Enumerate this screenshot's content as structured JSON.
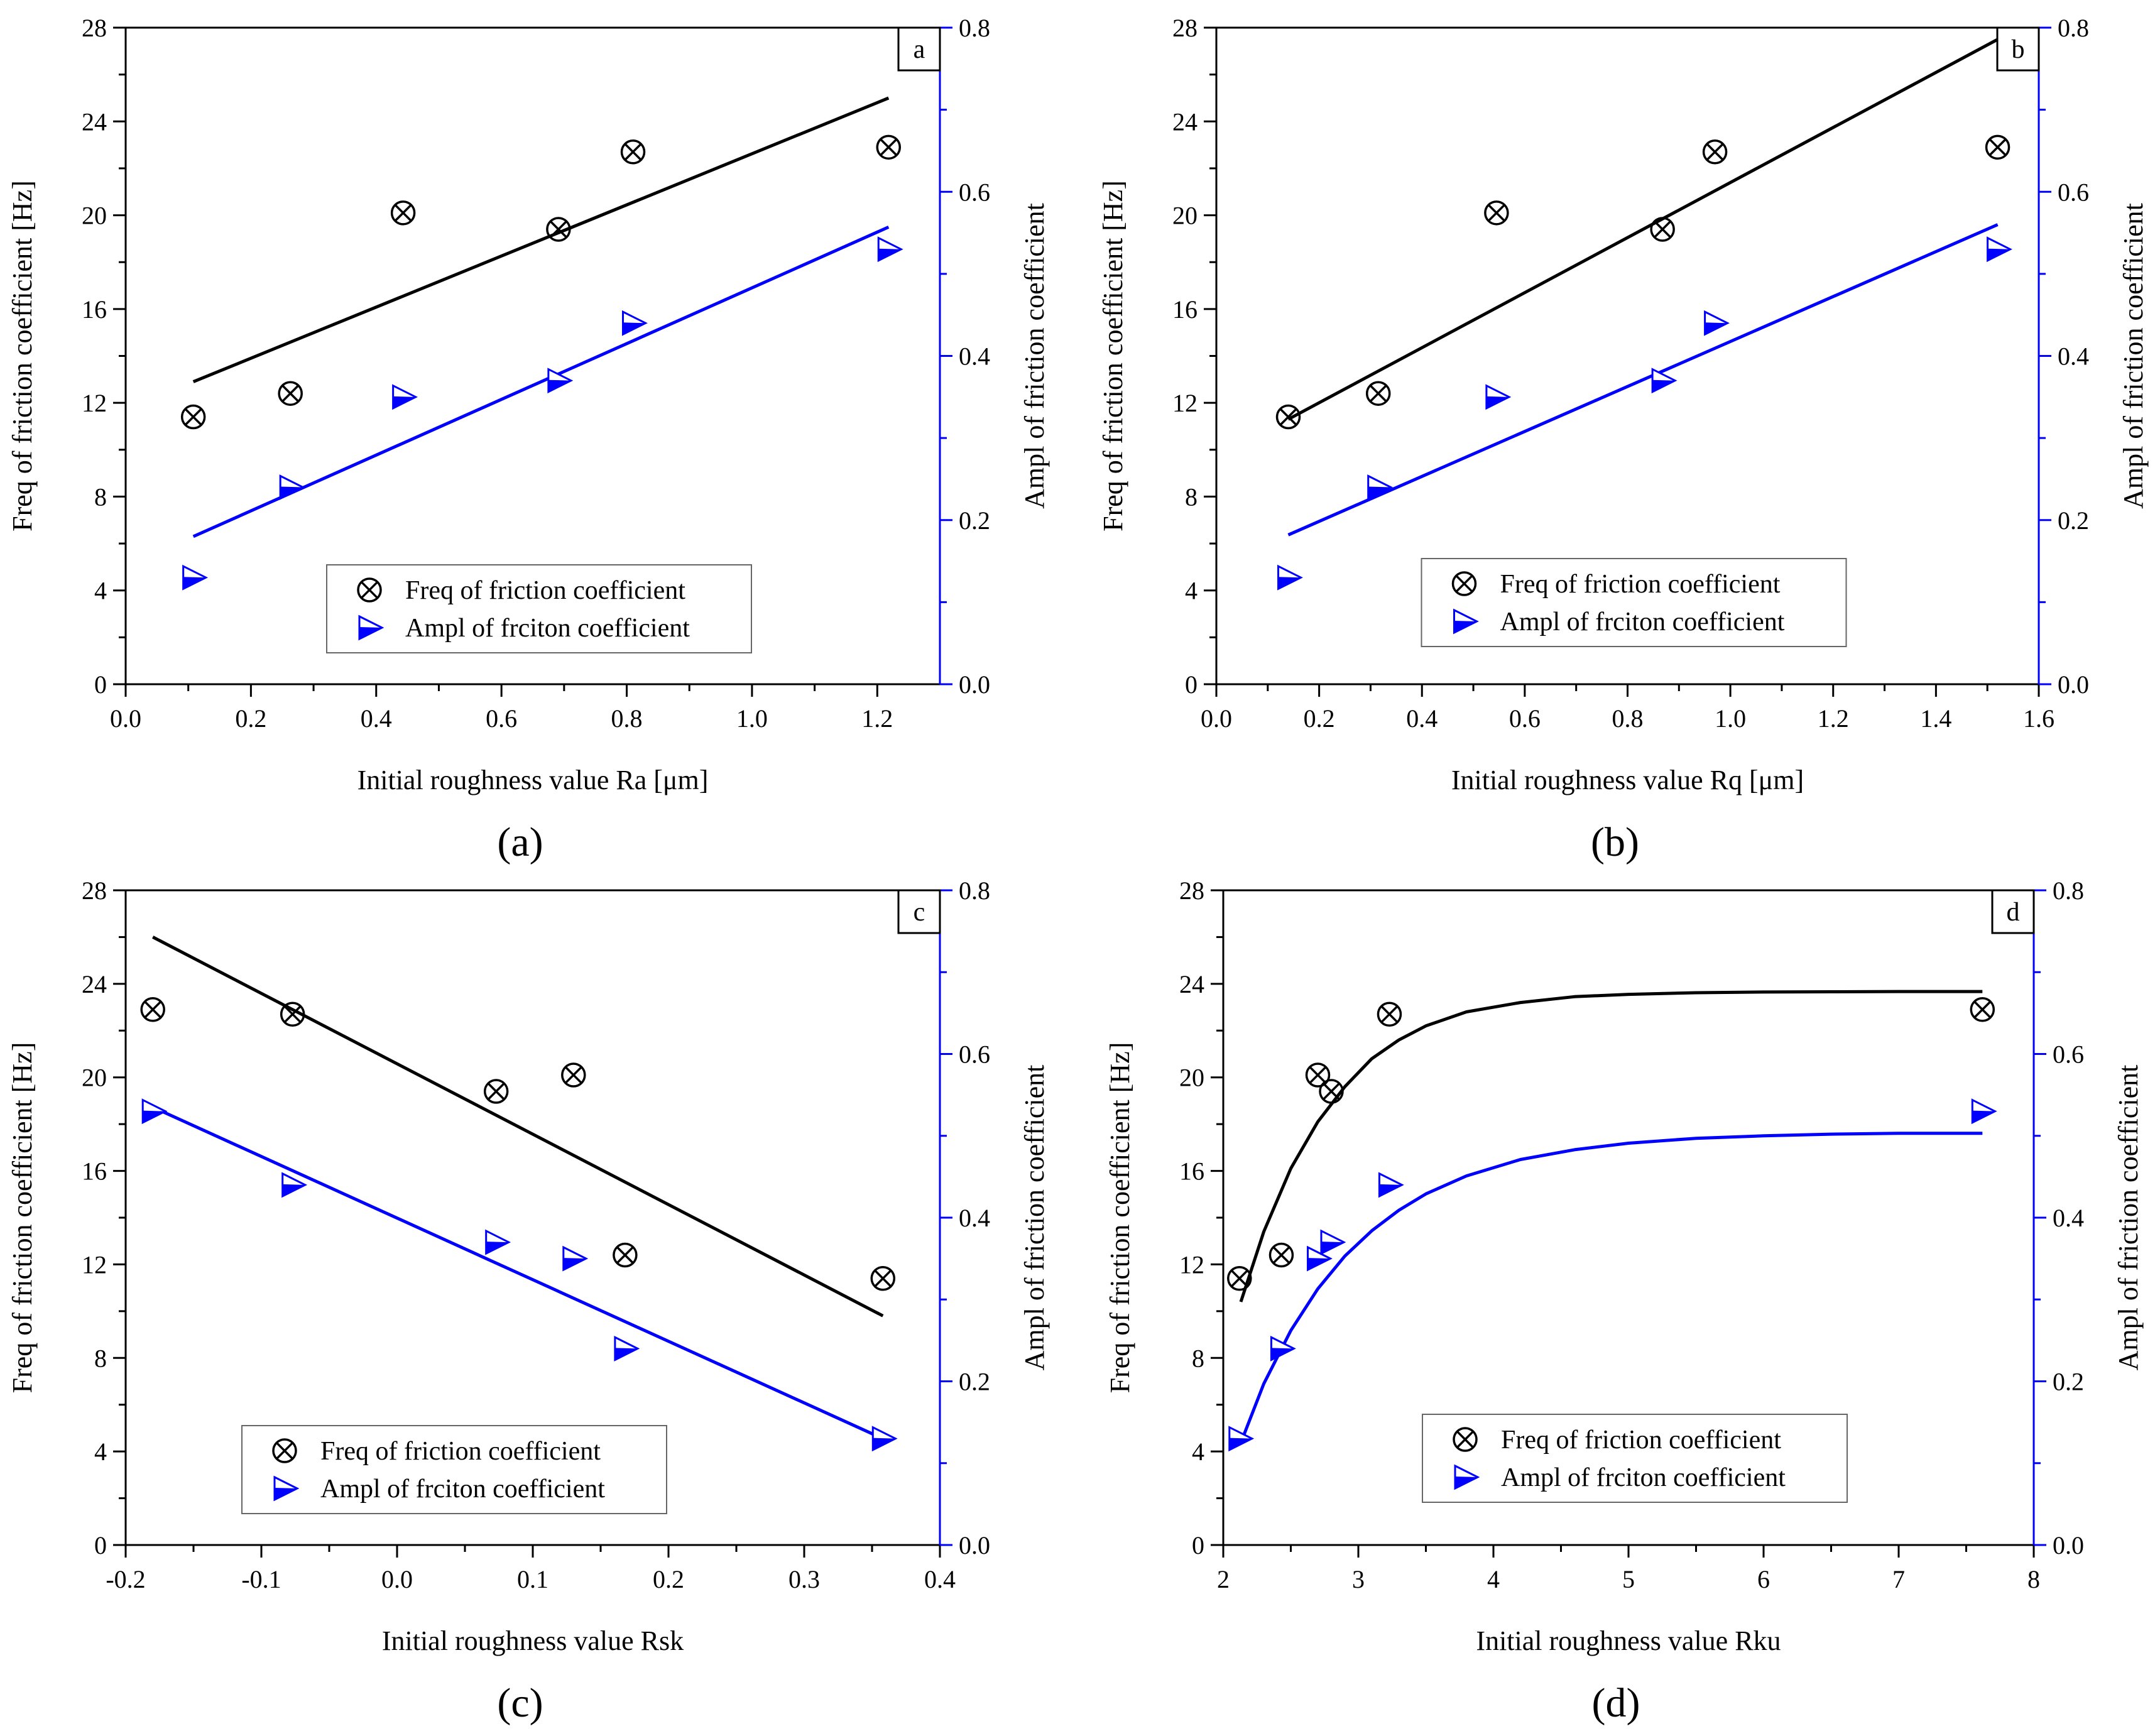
{
  "figure": {
    "panels": [
      "a",
      "b",
      "c",
      "d"
    ]
  },
  "colors": {
    "axis": "#000000",
    "secondary_axis": "#0000ff",
    "freq": "#000000",
    "ampl": "#0000ff"
  },
  "chart_data": [
    {
      "id": "a",
      "type": "scatter",
      "caption": "(a)",
      "panel_label": "a",
      "xlabel": "Initial roughness value Ra [μm]",
      "ylabel": "Freq of friction coefficient [Hz]",
      "y2label": "Ampl of friction coefficient",
      "xlim": [
        0,
        1.3
      ],
      "ylim": [
        0,
        28
      ],
      "y2lim": [
        0,
        0.8
      ],
      "xticks": [
        "0.0",
        "0.2",
        "0.4",
        "0.6",
        "0.8",
        "1.0",
        "1.2"
      ],
      "xtick_values": [
        0,
        0.2,
        0.4,
        0.6,
        0.8,
        1.0,
        1.2
      ],
      "yticks": [
        "0",
        "4",
        "8",
        "12",
        "16",
        "20",
        "24",
        "28"
      ],
      "ytick_values": [
        0,
        4,
        8,
        12,
        16,
        20,
        24,
        28
      ],
      "y2ticks": [
        "0.0",
        "0.2",
        "0.4",
        "0.6",
        "0.8"
      ],
      "y2tick_values": [
        0,
        0.2,
        0.4,
        0.6,
        0.8
      ],
      "legend_position": "bottom-center",
      "series": [
        {
          "name": "Freq of friction coefficient",
          "axis": "left",
          "marker": "circle-x",
          "x": [
            0.108,
            0.263,
            0.443,
            0.691,
            0.81,
            1.218
          ],
          "y": [
            11.4,
            12.4,
            20.1,
            19.4,
            22.7,
            22.9
          ]
        },
        {
          "name": "Ampl of frciton coefficient",
          "axis": "right",
          "marker": "triangle-right",
          "x": [
            0.108,
            0.263,
            0.443,
            0.691,
            0.81,
            1.218
          ],
          "y": [
            0.13,
            0.24,
            0.35,
            0.37,
            0.44,
            0.53
          ]
        }
      ],
      "fits": [
        {
          "series": "Freq of friction coefficient",
          "axis": "left",
          "kind": "linear",
          "x": [
            0.108,
            1.218
          ],
          "y": [
            12.9,
            25.0
          ]
        },
        {
          "series": "Ampl of frciton coefficient",
          "axis": "right",
          "kind": "linear",
          "x": [
            0.108,
            1.218
          ],
          "y": [
            0.18,
            0.557
          ]
        }
      ]
    },
    {
      "id": "b",
      "type": "scatter",
      "caption": "(b)",
      "panel_label": "b",
      "xlabel": "Initial roughness value Rq [μm]",
      "ylabel": "Freq of friction coefficient [Hz]",
      "y2label": "Ampl of friction coefficient",
      "xlim": [
        0,
        1.6
      ],
      "ylim": [
        0,
        28
      ],
      "y2lim": [
        0,
        0.8
      ],
      "xticks": [
        "0.0",
        "0.2",
        "0.4",
        "0.6",
        "0.8",
        "1.0",
        "1.2",
        "1.4",
        "1.6"
      ],
      "xtick_values": [
        0,
        0.2,
        0.4,
        0.6,
        0.8,
        1.0,
        1.2,
        1.4,
        1.6
      ],
      "yticks": [
        "0",
        "4",
        "8",
        "12",
        "16",
        "20",
        "24",
        "28"
      ],
      "ytick_values": [
        0,
        4,
        8,
        12,
        16,
        20,
        24,
        28
      ],
      "y2ticks": [
        "0.0",
        "0.2",
        "0.4",
        "0.6",
        "0.8"
      ],
      "y2tick_values": [
        0,
        0.2,
        0.4,
        0.6,
        0.8
      ],
      "legend_position": "bottom-center",
      "series": [
        {
          "name": "Freq of friction coefficient",
          "axis": "left",
          "marker": "circle-x",
          "x": [
            0.14,
            0.315,
            0.545,
            0.868,
            0.97,
            1.52
          ],
          "y": [
            11.4,
            12.4,
            20.1,
            19.4,
            22.7,
            22.9
          ]
        },
        {
          "name": "Ampl of frciton coefficient",
          "axis": "right",
          "marker": "triangle-right",
          "x": [
            0.14,
            0.315,
            0.545,
            0.868,
            0.97,
            1.52
          ],
          "y": [
            0.13,
            0.24,
            0.35,
            0.37,
            0.44,
            0.53
          ]
        }
      ],
      "fits": [
        {
          "series": "Freq of friction coefficient",
          "axis": "left",
          "kind": "linear",
          "x": [
            0.14,
            1.52
          ],
          "y": [
            11.3,
            27.5
          ]
        },
        {
          "series": "Ampl of frciton coefficient",
          "axis": "right",
          "kind": "linear",
          "x": [
            0.14,
            1.52
          ],
          "y": [
            0.182,
            0.56
          ]
        }
      ]
    },
    {
      "id": "c",
      "type": "scatter",
      "caption": "(c)",
      "panel_label": "c",
      "xlabel": "Initial roughness value Rsk",
      "ylabel": "Freq of friction coefficient [Hz]",
      "y2label": "Ampl of friction coefficient",
      "xlim": [
        -0.2,
        0.4
      ],
      "ylim": [
        0,
        28
      ],
      "y2lim": [
        0,
        0.8
      ],
      "xticks": [
        "-0.2",
        "-0.1",
        "0.0",
        "0.1",
        "0.2",
        "0.3",
        "0.4"
      ],
      "xtick_values": [
        -0.2,
        -0.1,
        0,
        0.1,
        0.2,
        0.3,
        0.4
      ],
      "yticks": [
        "0",
        "4",
        "8",
        "12",
        "16",
        "20",
        "24",
        "28"
      ],
      "ytick_values": [
        0,
        4,
        8,
        12,
        16,
        20,
        24,
        28
      ],
      "y2ticks": [
        "0.0",
        "0.2",
        "0.4",
        "0.6",
        "0.8"
      ],
      "y2tick_values": [
        0,
        0.2,
        0.4,
        0.6,
        0.8
      ],
      "legend_position": "bottom-left",
      "series": [
        {
          "name": "Freq of friction coefficient",
          "axis": "left",
          "marker": "circle-x",
          "x": [
            -0.18,
            -0.077,
            0.073,
            0.13,
            0.168,
            0.358
          ],
          "y": [
            22.9,
            22.7,
            19.4,
            20.1,
            12.4,
            11.4
          ]
        },
        {
          "name": "Ampl of frciton coefficient",
          "axis": "right",
          "marker": "triangle-right",
          "x": [
            -0.18,
            -0.077,
            0.073,
            0.13,
            0.168,
            0.358
          ],
          "y": [
            0.53,
            0.44,
            0.37,
            0.35,
            0.24,
            0.13
          ]
        }
      ],
      "fits": [
        {
          "series": "Freq of friction coefficient",
          "axis": "left",
          "kind": "linear",
          "x": [
            -0.18,
            0.358
          ],
          "y": [
            26.0,
            9.8
          ]
        },
        {
          "series": "Ampl of frciton coefficient",
          "axis": "right",
          "kind": "linear",
          "x": [
            -0.18,
            0.358
          ],
          "y": [
            0.535,
            0.13
          ]
        }
      ]
    },
    {
      "id": "d",
      "type": "scatter",
      "caption": "(d)",
      "panel_label": "d",
      "xlabel": "Initial roughness value Rku",
      "ylabel": "Freq of friction coefficient [Hz]",
      "y2label": "Ampl of friction coefficient",
      "xlim": [
        2,
        8
      ],
      "ylim": [
        0,
        28
      ],
      "y2lim": [
        0,
        0.8
      ],
      "xticks": [
        "2",
        "3",
        "4",
        "5",
        "6",
        "7",
        "8"
      ],
      "xtick_values": [
        2,
        3,
        4,
        5,
        6,
        7,
        8
      ],
      "yticks": [
        "0",
        "4",
        "8",
        "12",
        "16",
        "20",
        "24",
        "28"
      ],
      "ytick_values": [
        0,
        4,
        8,
        12,
        16,
        20,
        24,
        28
      ],
      "y2ticks": [
        "0.0",
        "0.2",
        "0.4",
        "0.6",
        "0.8"
      ],
      "y2tick_values": [
        0,
        0.2,
        0.4,
        0.6,
        0.8
      ],
      "legend_position": "bottom-center",
      "series": [
        {
          "name": "Freq of friction coefficient",
          "axis": "left",
          "marker": "circle-x",
          "x": [
            2.12,
            2.43,
            2.7,
            2.8,
            3.23,
            7.62
          ],
          "y": [
            11.4,
            12.4,
            20.1,
            19.4,
            22.7,
            22.9
          ]
        },
        {
          "name": "Ampl of frciton coefficient",
          "axis": "right",
          "marker": "triangle-right",
          "x": [
            2.12,
            2.43,
            2.7,
            2.8,
            3.23,
            7.62
          ],
          "y": [
            0.13,
            0.24,
            0.35,
            0.37,
            0.44,
            0.53
          ]
        }
      ],
      "fits": [
        {
          "series": "Freq of friction coefficient",
          "axis": "left",
          "kind": "exponential",
          "x": [
            2.13,
            2.3,
            2.5,
            2.7,
            2.9,
            3.1,
            3.3,
            3.5,
            3.8,
            4.2,
            4.6,
            5.0,
            5.5,
            6.0,
            6.5,
            7.0,
            7.62
          ],
          "y": [
            10.4,
            13.4,
            16.1,
            18.1,
            19.6,
            20.8,
            21.6,
            22.2,
            22.8,
            23.2,
            23.45,
            23.55,
            23.62,
            23.65,
            23.66,
            23.67,
            23.67
          ]
        },
        {
          "series": "Ampl of frciton coefficient",
          "axis": "right",
          "kind": "exponential",
          "x": [
            2.13,
            2.3,
            2.5,
            2.7,
            2.9,
            3.1,
            3.3,
            3.5,
            3.8,
            4.2,
            4.6,
            5.0,
            5.5,
            6.0,
            6.5,
            7.0,
            7.62
          ],
          "y": [
            0.125,
            0.197,
            0.262,
            0.313,
            0.353,
            0.384,
            0.409,
            0.429,
            0.451,
            0.471,
            0.483,
            0.491,
            0.497,
            0.5,
            0.502,
            0.503,
            0.503
          ]
        }
      ]
    }
  ]
}
